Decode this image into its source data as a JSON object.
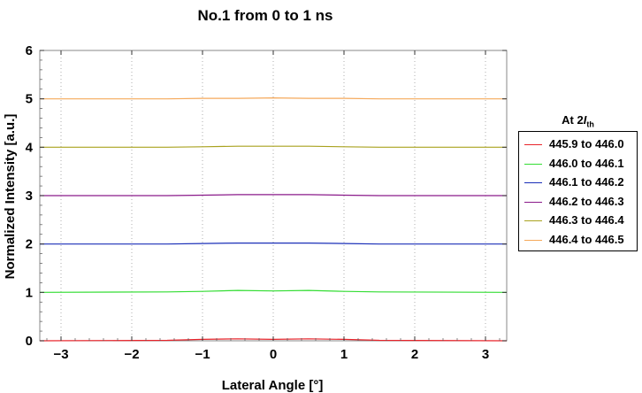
{
  "chart_data": {
    "type": "line",
    "title": "No.1  from 0 to 1 ns",
    "xlabel": "Lateral Angle [°]",
    "ylabel": "Normalized Intensity [a.u.]",
    "xlim": [
      -3.3,
      3.3
    ],
    "ylim": [
      0,
      6
    ],
    "xticks": [
      -3,
      -2,
      -1,
      0,
      1,
      2,
      3
    ],
    "xtick_labels": [
      "−3",
      "−2",
      "−1",
      "0",
      "1",
      "2",
      "3"
    ],
    "yticks": [
      0,
      1,
      2,
      3,
      4,
      5,
      6
    ],
    "ytick_labels": [
      "0",
      "1",
      "2",
      "3",
      "4",
      "5",
      "6"
    ],
    "grid": "dotted",
    "legend_position": "right",
    "legend_title_main": "At 2",
    "legend_title_italic": "I",
    "legend_title_sub": "th",
    "series": [
      {
        "name": "445.9 to 446.0",
        "color": "#e8242b",
        "offset": 0,
        "x": [
          -3.3,
          -1.5,
          -1.0,
          -0.5,
          0.0,
          0.5,
          1.0,
          1.5,
          3.3
        ],
        "y": [
          0.0,
          0.01,
          0.03,
          0.04,
          0.03,
          0.04,
          0.03,
          0.01,
          0.0
        ]
      },
      {
        "name": "446.0 to 446.1",
        "color": "#33dd33",
        "offset": 1,
        "x": [
          -3.3,
          -1.5,
          -1.0,
          -0.5,
          0.0,
          0.5,
          1.0,
          1.5,
          3.3
        ],
        "y": [
          1.0,
          1.01,
          1.02,
          1.04,
          1.03,
          1.04,
          1.02,
          1.01,
          1.0
        ]
      },
      {
        "name": "446.1 to 446.2",
        "color": "#1a2fb8",
        "offset": 2,
        "x": [
          -3.3,
          -1.5,
          -1.0,
          -0.5,
          0.0,
          0.5,
          1.0,
          1.5,
          3.3
        ],
        "y": [
          2.0,
          2.0,
          2.01,
          2.02,
          2.02,
          2.02,
          2.01,
          2.0,
          2.0
        ]
      },
      {
        "name": "446.2 to 446.3",
        "color": "#8a1a8a",
        "offset": 3,
        "x": [
          -3.3,
          -1.5,
          -1.0,
          -0.5,
          0.0,
          0.5,
          1.0,
          1.5,
          3.3
        ],
        "y": [
          3.0,
          3.0,
          3.01,
          3.02,
          3.02,
          3.02,
          3.01,
          3.0,
          3.0
        ]
      },
      {
        "name": "446.3 to 446.4",
        "color": "#a9a21f",
        "offset": 4,
        "x": [
          -3.3,
          -1.5,
          -1.0,
          -0.5,
          0.0,
          0.5,
          1.0,
          1.5,
          3.3
        ],
        "y": [
          4.0,
          4.0,
          4.01,
          4.02,
          4.02,
          4.02,
          4.01,
          4.0,
          4.0
        ]
      },
      {
        "name": "446.4 to 446.5",
        "color": "#f5a95b",
        "offset": 5,
        "x": [
          -3.3,
          -1.5,
          -1.0,
          -0.5,
          0.0,
          0.5,
          1.0,
          1.5,
          3.3
        ],
        "y": [
          5.0,
          5.0,
          5.01,
          5.01,
          5.02,
          5.01,
          5.01,
          5.0,
          5.0
        ]
      }
    ]
  }
}
